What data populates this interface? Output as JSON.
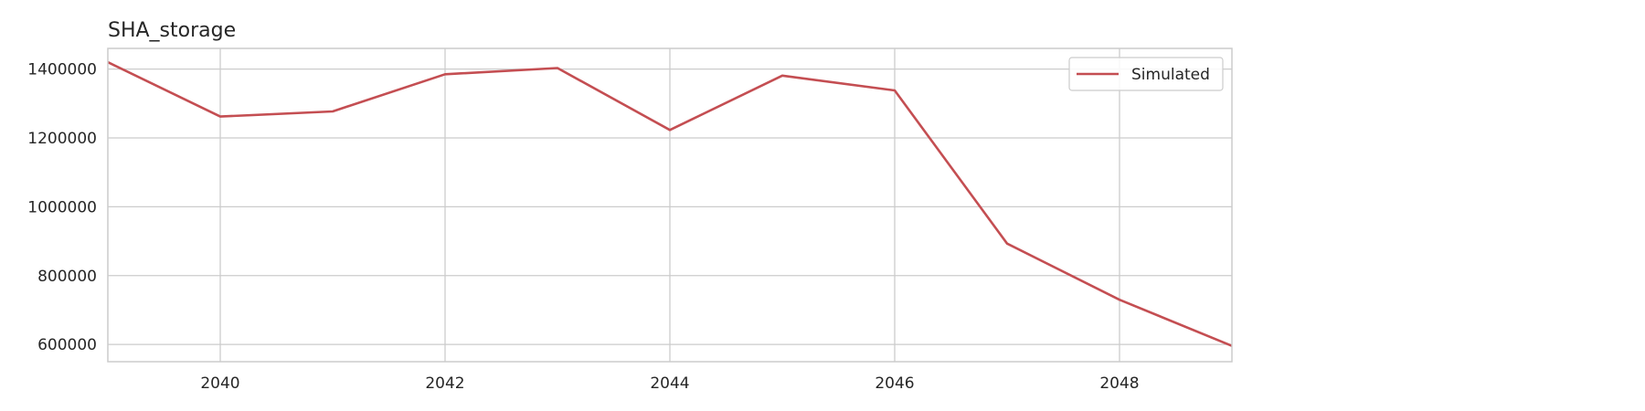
{
  "chart_data": {
    "type": "line",
    "title": "SHA_storage",
    "xlabel": "",
    "ylabel": "",
    "x": [
      2039,
      2040,
      2041,
      2042,
      2043,
      2044,
      2045,
      2046,
      2047,
      2048,
      2049
    ],
    "xlim": [
      2039,
      2049
    ],
    "ylim": [
      550000,
      1460000
    ],
    "xticks": [
      2040,
      2042,
      2044,
      2046,
      2048
    ],
    "yticks": [
      600000,
      800000,
      1000000,
      1200000,
      1400000
    ],
    "grid": true,
    "legend_position": "top-right",
    "series": [
      {
        "name": "Simulated",
        "color": "#c44e52",
        "values": [
          1420000,
          1262000,
          1277000,
          1385000,
          1403000,
          1223000,
          1381000,
          1338000,
          893000,
          730000,
          596000
        ]
      }
    ]
  }
}
